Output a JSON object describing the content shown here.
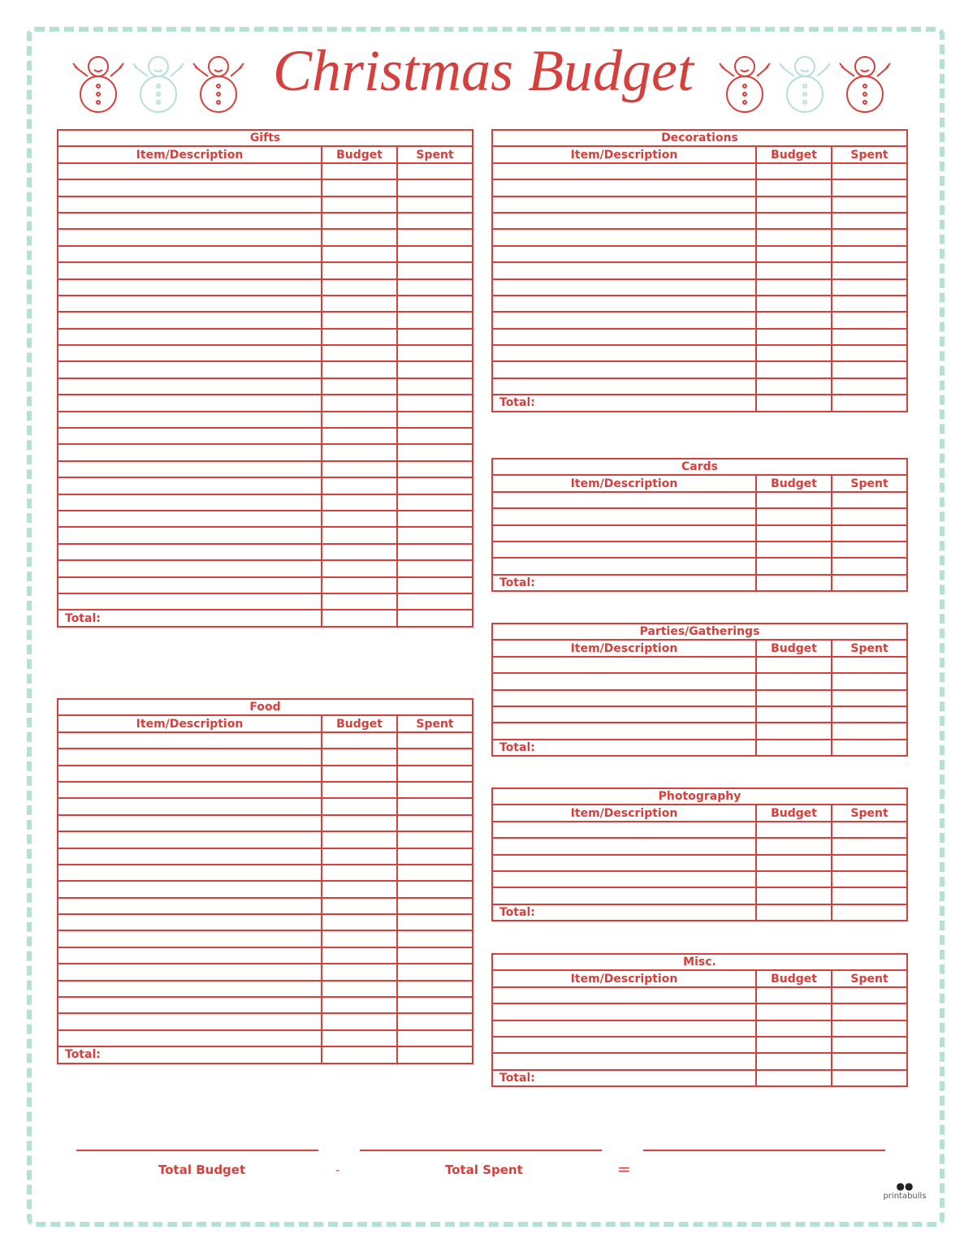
{
  "title": "Christmas Budget",
  "colors": {
    "accent": "#d6403c",
    "border": "#b5e0d6"
  },
  "columns": {
    "item": "Item/Description",
    "budget": "Budget",
    "spent": "Spent"
  },
  "total_label": "Total:",
  "sections": {
    "gifts": {
      "title": "Gifts",
      "rows": 27
    },
    "food": {
      "title": "Food",
      "rows": 19
    },
    "decorations": {
      "title": "Decorations",
      "rows": 14
    },
    "cards": {
      "title": "Cards",
      "rows": 5
    },
    "parties": {
      "title": "Parties/Gatherings",
      "rows": 5
    },
    "photography": {
      "title": "Photography",
      "rows": 5
    },
    "misc": {
      "title": "Misc.",
      "rows": 5
    }
  },
  "footer": {
    "total_budget": "Total Budget",
    "minus": "-",
    "total_spent": "Total Spent",
    "equals": "="
  },
  "logo": "printabulls"
}
